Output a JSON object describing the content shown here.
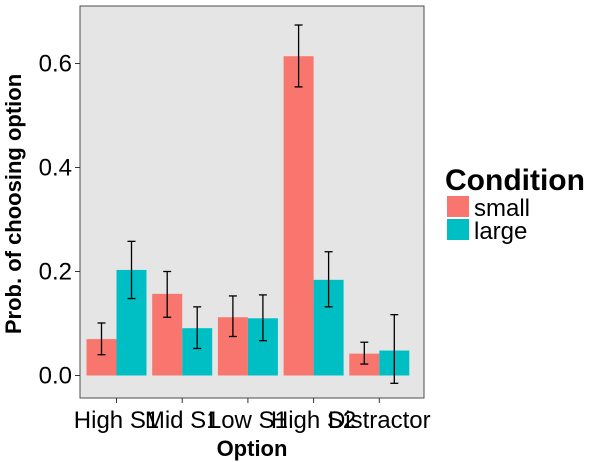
{
  "chart_data": {
    "type": "bar",
    "xlabel": "Option",
    "ylabel": "Prob. of choosing option",
    "ylim": [
      -0.045,
      0.705
    ],
    "yticks": [
      0.0,
      0.2,
      0.4,
      0.6
    ],
    "ytick_labels": [
      "0.0",
      "0.2",
      "0.4",
      "0.6"
    ],
    "categories": [
      "High S1",
      "Mid S1",
      "Low S1",
      "High S2",
      "Distractor"
    ],
    "series": [
      {
        "name": "small",
        "color": "#F8766D",
        "values": [
          0.07,
          0.157,
          0.112,
          0.614,
          0.042
        ],
        "err_low": [
          0.04,
          0.112,
          0.075,
          0.555,
          0.022
        ],
        "err_high": [
          0.101,
          0.2,
          0.153,
          0.674,
          0.064
        ]
      },
      {
        "name": "large",
        "color": "#00BFC4",
        "values": [
          0.203,
          0.091,
          0.11,
          0.184,
          0.048
        ],
        "err_low": [
          0.148,
          0.052,
          0.067,
          0.132,
          -0.015
        ],
        "err_high": [
          0.258,
          0.132,
          0.155,
          0.238,
          0.117
        ]
      }
    ],
    "legend": {
      "title": "Condition",
      "position": "right"
    },
    "panel_background": "#E5E5E5",
    "grid": false
  }
}
